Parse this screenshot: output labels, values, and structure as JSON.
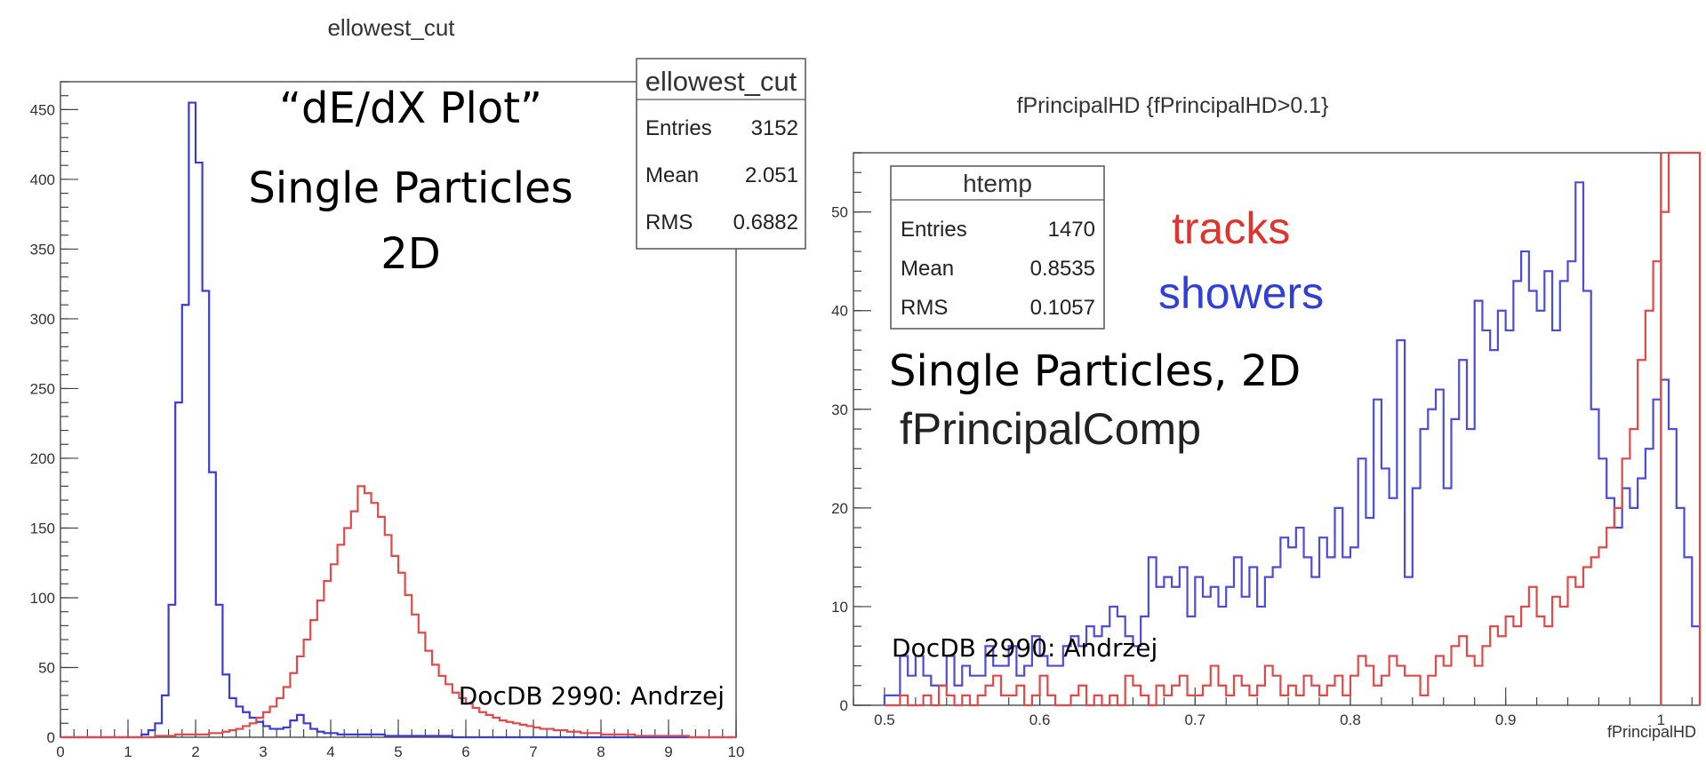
{
  "chart_data": [
    {
      "type": "histogram",
      "title": "ellowest_cut",
      "xlabel": "",
      "ylabel": "",
      "xlim": [
        0,
        10
      ],
      "ylim": [
        0,
        470
      ],
      "x_ticks": [
        "0",
        "1",
        "2",
        "3",
        "4",
        "5",
        "6",
        "7",
        "8",
        "9",
        "10"
      ],
      "y_ticks": [
        "0",
        "50",
        "100",
        "150",
        "200",
        "250",
        "300",
        "350",
        "400",
        "450"
      ],
      "x_tick_values": [
        0,
        1,
        2,
        3,
        4,
        5,
        6,
        7,
        8,
        9,
        10
      ],
      "y_tick_values": [
        0,
        50,
        100,
        150,
        200,
        250,
        300,
        350,
        400,
        450
      ],
      "stats_box": {
        "name": "ellowest_cut",
        "rows": [
          {
            "label": "Entries",
            "value": "3152"
          },
          {
            "label": "Mean",
            "value": "2.051"
          },
          {
            "label": "RMS",
            "value": "0.6882"
          }
        ]
      },
      "annotations": {
        "heading_1": "“dE/dX Plot”",
        "heading_2": "Single Particles",
        "heading_3": "2D",
        "credit": "DocDB 2990: Andrzej"
      },
      "series": [
        {
          "color": "#3b3bd6",
          "bin_start": 0,
          "bin_width": 0.1,
          "values": [
            0,
            0,
            0,
            0,
            0,
            0,
            0,
            0,
            0,
            0,
            0,
            0,
            2,
            5,
            10,
            30,
            95,
            240,
            310,
            455,
            412,
            320,
            190,
            95,
            45,
            28,
            22,
            18,
            14,
            11,
            8,
            6,
            6,
            7,
            12,
            16,
            10,
            6,
            4,
            3,
            3,
            2,
            2,
            2,
            2,
            2,
            2,
            2,
            1,
            1,
            1,
            1,
            1,
            1,
            1,
            1,
            1,
            1,
            0,
            0,
            0,
            0,
            0,
            0,
            0,
            0,
            0,
            0,
            0,
            0,
            0,
            0,
            0,
            0,
            0,
            0,
            0,
            0,
            0,
            0,
            0,
            0,
            0,
            0,
            0,
            0,
            0,
            0,
            0,
            0,
            0,
            0,
            0,
            0,
            0,
            0,
            0,
            0,
            0,
            0
          ]
        },
        {
          "color": "#e04a4a",
          "bin_start": 0,
          "bin_width": 0.1,
          "values": [
            0,
            0,
            0,
            0,
            0,
            0,
            0,
            0,
            0,
            0,
            0,
            0,
            0,
            0,
            1,
            1,
            1,
            2,
            2,
            2,
            2,
            2,
            3,
            3,
            4,
            5,
            6,
            8,
            10,
            14,
            18,
            22,
            28,
            36,
            46,
            58,
            70,
            84,
            98,
            112,
            124,
            138,
            150,
            162,
            180,
            175,
            168,
            158,
            145,
            130,
            118,
            102,
            88,
            75,
            62,
            52,
            44,
            38,
            32,
            28,
            24,
            21,
            18,
            16,
            14,
            12,
            11,
            10,
            9,
            8,
            7,
            6,
            6,
            5,
            5,
            4,
            4,
            3,
            3,
            3,
            2,
            2,
            2,
            2,
            2,
            1,
            1,
            1,
            1,
            1,
            1,
            1,
            1,
            0,
            0,
            0,
            0,
            0,
            0,
            0
          ]
        }
      ]
    },
    {
      "type": "histogram",
      "title": "fPrincipalHD {fPrincipalHD>0.1}",
      "xlabel": "fPrincipalHD",
      "ylabel": "",
      "xlim": [
        0.48,
        1.025
      ],
      "ylim": [
        0,
        56
      ],
      "x_ticks": [
        "0.5",
        "0.6",
        "0.7",
        "0.8",
        "0.9",
        "1"
      ],
      "y_ticks": [
        "0",
        "10",
        "20",
        "30",
        "40",
        "50"
      ],
      "x_tick_values": [
        0.5,
        0.6,
        0.7,
        0.8,
        0.9,
        1.0
      ],
      "y_tick_values": [
        0,
        10,
        20,
        30,
        40,
        50
      ],
      "stats_box": {
        "name": "htemp",
        "rows": [
          {
            "label": "Entries",
            "value": "1470"
          },
          {
            "label": "Mean",
            "value": "0.8535"
          },
          {
            "label": "RMS",
            "value": "0.1057"
          }
        ]
      },
      "annotations": {
        "legend_tracks": "tracks",
        "legend_showers": "showers",
        "heading_1": "Single Particles, 2D",
        "heading_2": "fPrincipalComp",
        "credit": "DocDB 2990: Andrzej"
      },
      "series": [
        {
          "name": "showers",
          "color": "#4b4bdc",
          "bin_start": 0.5,
          "bin_width": 0.005,
          "values": [
            1,
            1,
            5,
            3,
            5,
            3,
            2,
            2,
            5,
            2,
            4,
            3,
            3,
            6,
            4,
            4,
            6,
            3,
            4,
            7,
            5,
            4,
            4,
            6,
            7,
            6,
            8,
            7,
            8,
            10,
            9,
            7,
            6,
            9,
            15,
            12,
            13,
            12,
            14,
            9,
            13,
            11,
            12,
            10,
            12,
            15,
            11,
            14,
            10,
            13,
            14,
            17,
            16,
            18,
            15,
            13,
            17,
            15,
            20,
            15,
            16,
            25,
            19,
            31,
            24,
            21,
            37,
            13,
            22,
            28,
            30,
            32,
            22,
            29,
            35,
            28,
            41,
            38,
            36,
            40,
            38,
            43,
            46,
            42,
            40,
            44,
            38,
            43,
            45,
            53,
            42,
            30,
            25,
            21,
            18,
            22,
            20,
            23,
            26,
            31,
            33,
            28,
            20,
            15,
            8
          ]
        },
        {
          "name": "tracks",
          "color": "#e24848",
          "bin_start": 0.5,
          "bin_width": 0.005,
          "values": [
            0,
            0,
            1,
            0,
            0,
            1,
            0,
            2,
            1,
            0,
            1,
            0,
            1,
            2,
            3,
            1,
            1,
            2,
            0,
            1,
            3,
            1,
            0,
            0,
            1,
            2,
            0,
            1,
            0,
            1,
            0,
            3,
            2,
            1,
            0,
            2,
            1,
            2,
            3,
            1,
            1,
            2,
            4,
            2,
            1,
            3,
            2,
            1,
            2,
            4,
            3,
            1,
            2,
            1,
            3,
            2,
            1,
            2,
            3,
            1,
            3,
            5,
            4,
            2,
            3,
            5,
            4,
            3,
            3,
            1,
            3,
            5,
            4,
            6,
            7,
            5,
            4,
            6,
            8,
            7,
            9,
            8,
            10,
            12,
            9,
            8,
            11,
            10,
            13,
            12,
            14,
            15,
            16,
            18,
            20,
            25,
            28,
            35,
            40,
            45,
            50,
            56,
            58,
            58,
            58
          ]
        }
      ],
      "markers": [
        {
          "x": 1.0,
          "color": "#e24848"
        }
      ]
    }
  ]
}
